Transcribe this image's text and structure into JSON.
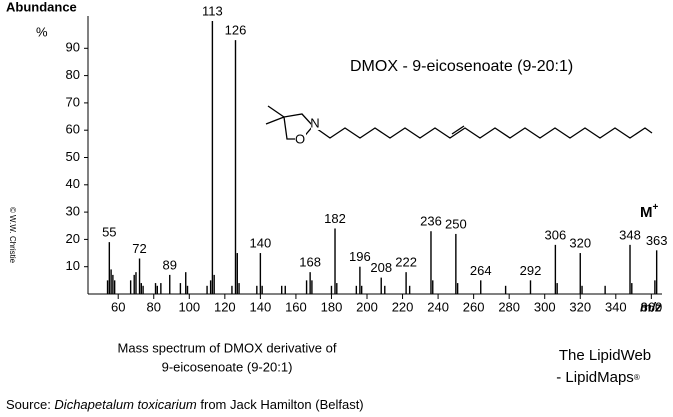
{
  "chart_data": {
    "type": "spectrum",
    "y_title": "Abundance",
    "y_unit": "%",
    "x_title": "m/z",
    "title": "DMOX - 9-eicosenoate (9-20:1)",
    "molecular_ion_label": "M",
    "molecular_ion_sup": "+",
    "structure_atoms": [
      "N",
      "O"
    ],
    "x": [
      55,
      72,
      89,
      113,
      126,
      140,
      168,
      182,
      196,
      208,
      222,
      236,
      250,
      264,
      292,
      306,
      320,
      348,
      363
    ],
    "values": [
      19,
      13,
      7,
      100,
      93,
      15,
      8,
      24,
      10,
      6,
      8,
      23,
      22,
      5,
      5,
      18,
      15,
      18,
      16
    ],
    "minor_peaks": {
      "x": [
        54,
        56,
        57,
        58,
        67,
        69,
        70,
        73,
        74,
        81,
        82,
        84,
        95,
        98,
        99,
        110,
        112,
        114,
        124,
        127,
        128,
        138,
        141,
        152,
        154,
        166,
        169,
        180,
        183,
        194,
        197,
        210,
        224,
        237,
        251,
        278,
        307,
        321,
        334,
        349,
        362
      ],
      "values": [
        5,
        9,
        7,
        5,
        5,
        7,
        8,
        4,
        3,
        4,
        3,
        4,
        4,
        8,
        3,
        3,
        5,
        7,
        3,
        15,
        4,
        3,
        3,
        3,
        3,
        5,
        5,
        3,
        4,
        3,
        3,
        3,
        3,
        5,
        4,
        3,
        4,
        3,
        3,
        4,
        5
      ]
    },
    "color": "#000000",
    "title_color": "#1f1fd6",
    "xlim": [
      43,
      366
    ],
    "ylim": [
      0,
      100
    ],
    "xticks": [
      60,
      80,
      100,
      120,
      140,
      160,
      180,
      200,
      220,
      240,
      260,
      280,
      300,
      320,
      340,
      360
    ],
    "yticks": [
      10,
      20,
      30,
      40,
      50,
      60,
      70,
      80,
      90
    ]
  },
  "caption": {
    "line1": "Mass spectrum of DMOX derivative of",
    "line2": "9-eicosenoate (9-20:1)"
  },
  "branding": {
    "line1": "The LipidWeb",
    "line2": "- LipidMaps",
    "mark": "®"
  },
  "source": {
    "prefix": "Source: ",
    "species": "Dichapetalum toxicarium",
    "suffix": " from Jack Hamilton (Belfast)"
  },
  "copyright": "© W.W. Christie"
}
